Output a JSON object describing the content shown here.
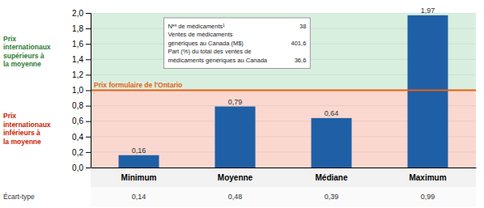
{
  "chart_data": {
    "type": "bar",
    "categories": [
      "Minimum",
      "Moyenne",
      "Médiane",
      "Maximum"
    ],
    "values": [
      0.16,
      0.79,
      0.64,
      1.97
    ],
    "value_labels": [
      "0,16",
      "0,79",
      "0,64",
      "1,97"
    ],
    "data_labels": true,
    "color": "#1F5FA6",
    "ylim": [
      0.0,
      2.0
    ],
    "yticks": [
      {
        "value": 0.0,
        "label": "0,0"
      },
      {
        "value": 0.2,
        "label": "0,2"
      },
      {
        "value": 0.4,
        "label": "0,4"
      },
      {
        "value": 0.6,
        "label": "0,6"
      },
      {
        "value": 0.8,
        "label": "0,8"
      },
      {
        "value": 1.0,
        "label": "1,0"
      },
      {
        "value": 1.2,
        "label": "1,2"
      },
      {
        "value": 1.4,
        "label": "1,4"
      },
      {
        "value": 1.6,
        "label": "1,6"
      },
      {
        "value": 1.8,
        "label": "1,8"
      },
      {
        "value": 2.0,
        "label": "2,0"
      }
    ],
    "grid": true,
    "reference_line": {
      "value": 1.0,
      "label": "Prix formulaire de l'Ontario",
      "color": "#E86010"
    },
    "regions": [
      {
        "label": "Prix\ninternationaux\nsupérieurs à\nla moyenne",
        "color": "#2E7D32",
        "background": "#D8EFE0"
      },
      {
        "label": "Prix\ninternationaux\ninférieurs à\nla moyenne",
        "color": "#CC2200",
        "background": "#FAD8D0"
      }
    ],
    "ecart_type": {
      "label": "Écart-type",
      "values": [
        0.14,
        0.48,
        0.39,
        0.99
      ],
      "value_labels": [
        "0,14",
        "0,48",
        "0,39",
        "0,99"
      ]
    },
    "info_box": {
      "rows": [
        {
          "label": "Nᵉˢ de médicaments¹",
          "value": 38
        },
        {
          "label": "Ventes de médicaments\ngénériques au Canada (M$)",
          "value": 401.6,
          "value_label": "401,6"
        },
        {
          "label": "Part (%) du total des ventes de\nmédicaments génériques au Canada",
          "value": 36.6,
          "value_label": "36,6"
        }
      ]
    }
  }
}
